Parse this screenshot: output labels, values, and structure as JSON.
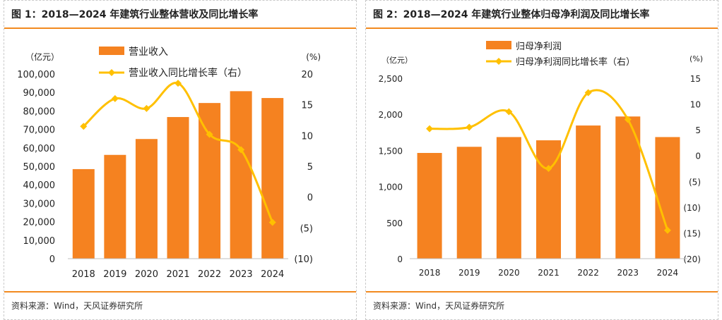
{
  "panels": [
    {
      "title": "图 1：2018—2024 年建筑行业整体营收及同比增长率",
      "source": "资料来源：Wind，天风证券研究所"
    },
    {
      "title": "图 2：2018—2024 年建筑行业整体归母净利润及同比增长率",
      "source": "资料来源：Wind，天风证券研究所"
    }
  ],
  "chart_data": [
    {
      "type": "bar",
      "title": "",
      "categories": [
        "2018",
        "2019",
        "2020",
        "2021",
        "2022",
        "2023",
        "2024"
      ],
      "series": [
        {
          "name": "营业收入",
          "type": "bar",
          "axis": "left",
          "color": "#f58220",
          "values": [
            48500,
            56200,
            64800,
            76700,
            84300,
            90700,
            87000
          ]
        },
        {
          "name": "营业收入同比增长率（右）",
          "type": "line",
          "axis": "right",
          "color": "#ffc000",
          "values": [
            11.5,
            16.0,
            14.4,
            18.5,
            10.2,
            7.7,
            -4.1
          ]
        }
      ],
      "left_unit": "（亿元）",
      "right_unit": "(%)",
      "left_axis": {
        "min": 0,
        "max": 100000,
        "ticks": [
          0,
          10000,
          20000,
          30000,
          40000,
          50000,
          60000,
          70000,
          80000,
          90000,
          100000
        ],
        "tick_labels": [
          "0",
          "10,000",
          "20,000",
          "30,000",
          "40,000",
          "50,000",
          "60,000",
          "70,000",
          "80,000",
          "90,000",
          "100,000"
        ]
      },
      "right_axis": {
        "min": -10,
        "max": 20,
        "ticks": [
          -10,
          -5,
          0,
          5,
          10,
          15,
          20
        ],
        "tick_labels": [
          "(10)",
          "(5)",
          "0",
          "5",
          "10",
          "15",
          "20"
        ]
      },
      "legend_position": "top",
      "grid": false
    },
    {
      "type": "bar",
      "title": "",
      "categories": [
        "2018",
        "2019",
        "2020",
        "2021",
        "2022",
        "2023",
        "2024"
      ],
      "series": [
        {
          "name": "归母净利润",
          "type": "bar",
          "axis": "left",
          "color": "#f58220",
          "values": [
            1465,
            1550,
            1685,
            1640,
            1845,
            1970,
            1685
          ]
        },
        {
          "name": "归母净利润同比增长率（右）",
          "type": "line",
          "axis": "right",
          "color": "#ffc000",
          "values": [
            5.2,
            5.5,
            8.5,
            -2.5,
            12.2,
            7.0,
            -14.5
          ]
        }
      ],
      "left_unit": "（亿元）",
      "right_unit": "(%)",
      "left_axis": {
        "min": 0,
        "max": 2500,
        "ticks": [
          0,
          500,
          1000,
          1500,
          2000,
          2500
        ],
        "tick_labels": [
          "0",
          "500",
          "1,000",
          "1,500",
          "2,000",
          "2,500"
        ]
      },
      "right_axis": {
        "min": -20,
        "max": 15,
        "ticks": [
          -20,
          -15,
          -10,
          -5,
          0,
          5,
          10,
          15
        ],
        "tick_labels": [
          "(20)",
          "(15)",
          "(10)",
          "(5)",
          "0",
          "5",
          "10",
          "15"
        ]
      },
      "legend_position": "top",
      "grid": false
    }
  ]
}
